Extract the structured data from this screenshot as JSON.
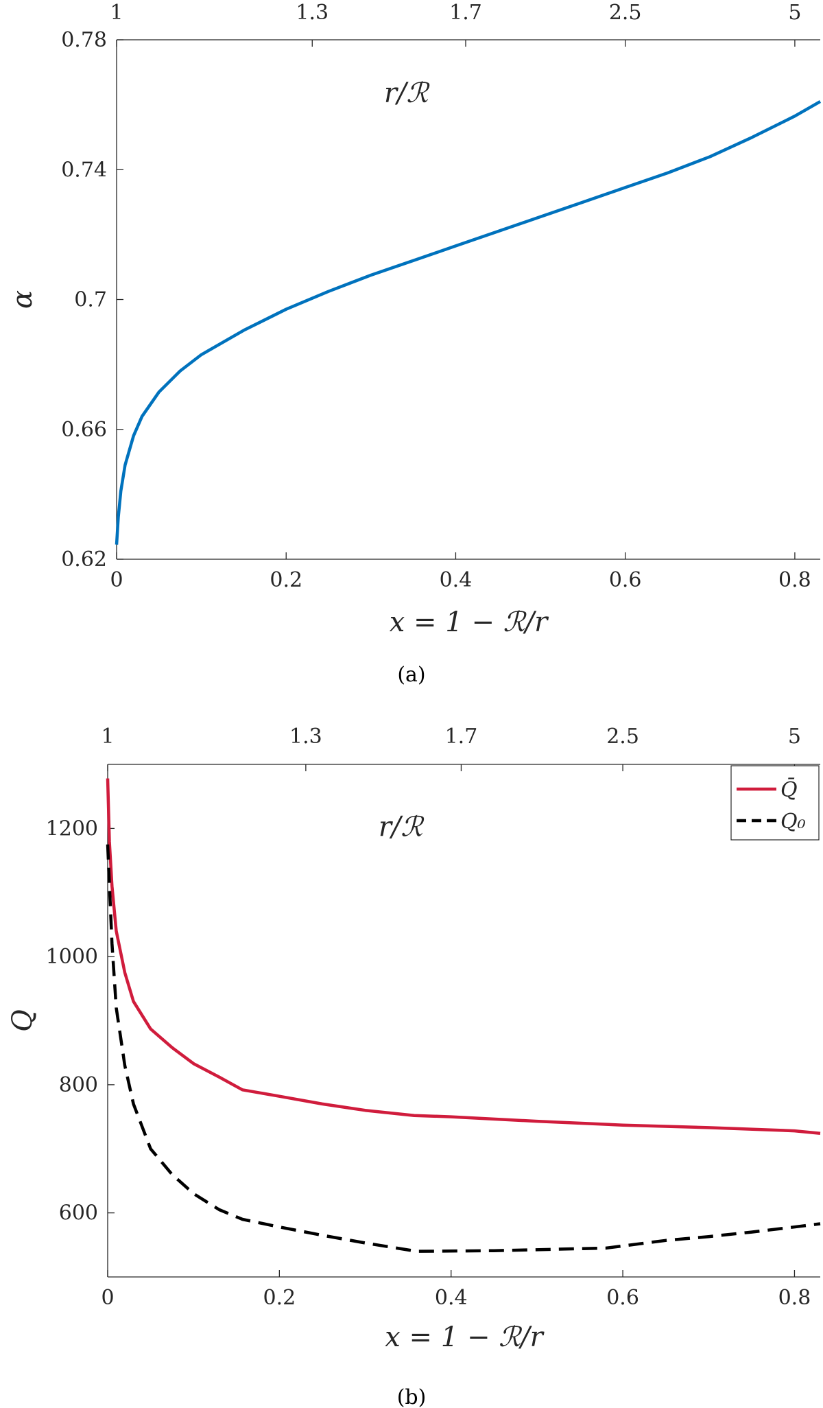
{
  "chart_data": [
    {
      "type": "line",
      "caption": "(a)",
      "xlabel": "x = 1 − ℛ/r",
      "ylabel": "α",
      "top_axis_label": "r/ℛ",
      "xlim": [
        0,
        0.83
      ],
      "ylim": [
        0.62,
        0.78
      ],
      "xticks": [
        "0",
        "0.2",
        "0.4",
        "0.6",
        "0.8"
      ],
      "yticks": [
        "0.62",
        "0.66",
        "0.7",
        "0.74",
        "0.78"
      ],
      "top_ticks": [
        "1",
        "1.3",
        "1.7",
        "2.5",
        "5"
      ],
      "grid": false,
      "series": [
        {
          "color": "#0072bd",
          "dash": "solid",
          "x": [
            0,
            0.002,
            0.005,
            0.01,
            0.02,
            0.03,
            0.05,
            0.075,
            0.1,
            0.15,
            0.2,
            0.25,
            0.3,
            0.35,
            0.4,
            0.45,
            0.5,
            0.55,
            0.6,
            0.65,
            0.7,
            0.75,
            0.8,
            0.83
          ],
          "y": [
            0.6245,
            0.633,
            0.641,
            0.649,
            0.658,
            0.664,
            0.6715,
            0.678,
            0.683,
            0.6905,
            0.697,
            0.7025,
            0.7075,
            0.712,
            0.7165,
            0.721,
            0.7255,
            0.73,
            0.7345,
            0.739,
            0.744,
            0.75,
            0.7565,
            0.761
          ]
        }
      ]
    },
    {
      "type": "line",
      "caption": "(b)",
      "xlabel": "x = 1 − ℛ/r",
      "ylabel": "Q",
      "top_axis_label": "r/ℛ",
      "xlim": [
        0,
        0.83
      ],
      "ylim": [
        500,
        1300
      ],
      "xticks": [
        "0",
        "0.2",
        "0.4",
        "0.6",
        "0.8"
      ],
      "yticks": [
        "600",
        "800",
        "1000",
        "1200"
      ],
      "top_ticks": [
        "1",
        "1.3",
        "1.7",
        "2.5",
        "5"
      ],
      "grid": false,
      "legend_position": "top-right",
      "series": [
        {
          "name": "Q̄",
          "color": "#d01c3c",
          "dash": "solid",
          "x": [
            0,
            0.002,
            0.005,
            0.01,
            0.02,
            0.03,
            0.05,
            0.075,
            0.1,
            0.13,
            0.157,
            0.2,
            0.25,
            0.3,
            0.357,
            0.4,
            0.5,
            0.6,
            0.7,
            0.8,
            0.83
          ],
          "y": [
            1278,
            1180,
            1110,
            1040,
            975,
            930,
            887,
            858,
            833,
            812,
            792,
            782,
            770,
            760,
            752,
            750,
            743,
            737,
            733,
            728,
            724
          ]
        },
        {
          "name": "Q₀",
          "color": "#000000",
          "dash": "dashed",
          "x": [
            0,
            0.005,
            0.01,
            0.02,
            0.03,
            0.05,
            0.075,
            0.1,
            0.13,
            0.157,
            0.2,
            0.25,
            0.3,
            0.36,
            0.45,
            0.58,
            0.65,
            0.7,
            0.75,
            0.8,
            0.83
          ],
          "y": [
            1175,
            1020,
            920,
            830,
            770,
            700,
            660,
            630,
            605,
            590,
            578,
            565,
            553,
            540,
            541,
            545,
            557,
            563,
            570,
            578,
            583
          ]
        }
      ]
    }
  ]
}
